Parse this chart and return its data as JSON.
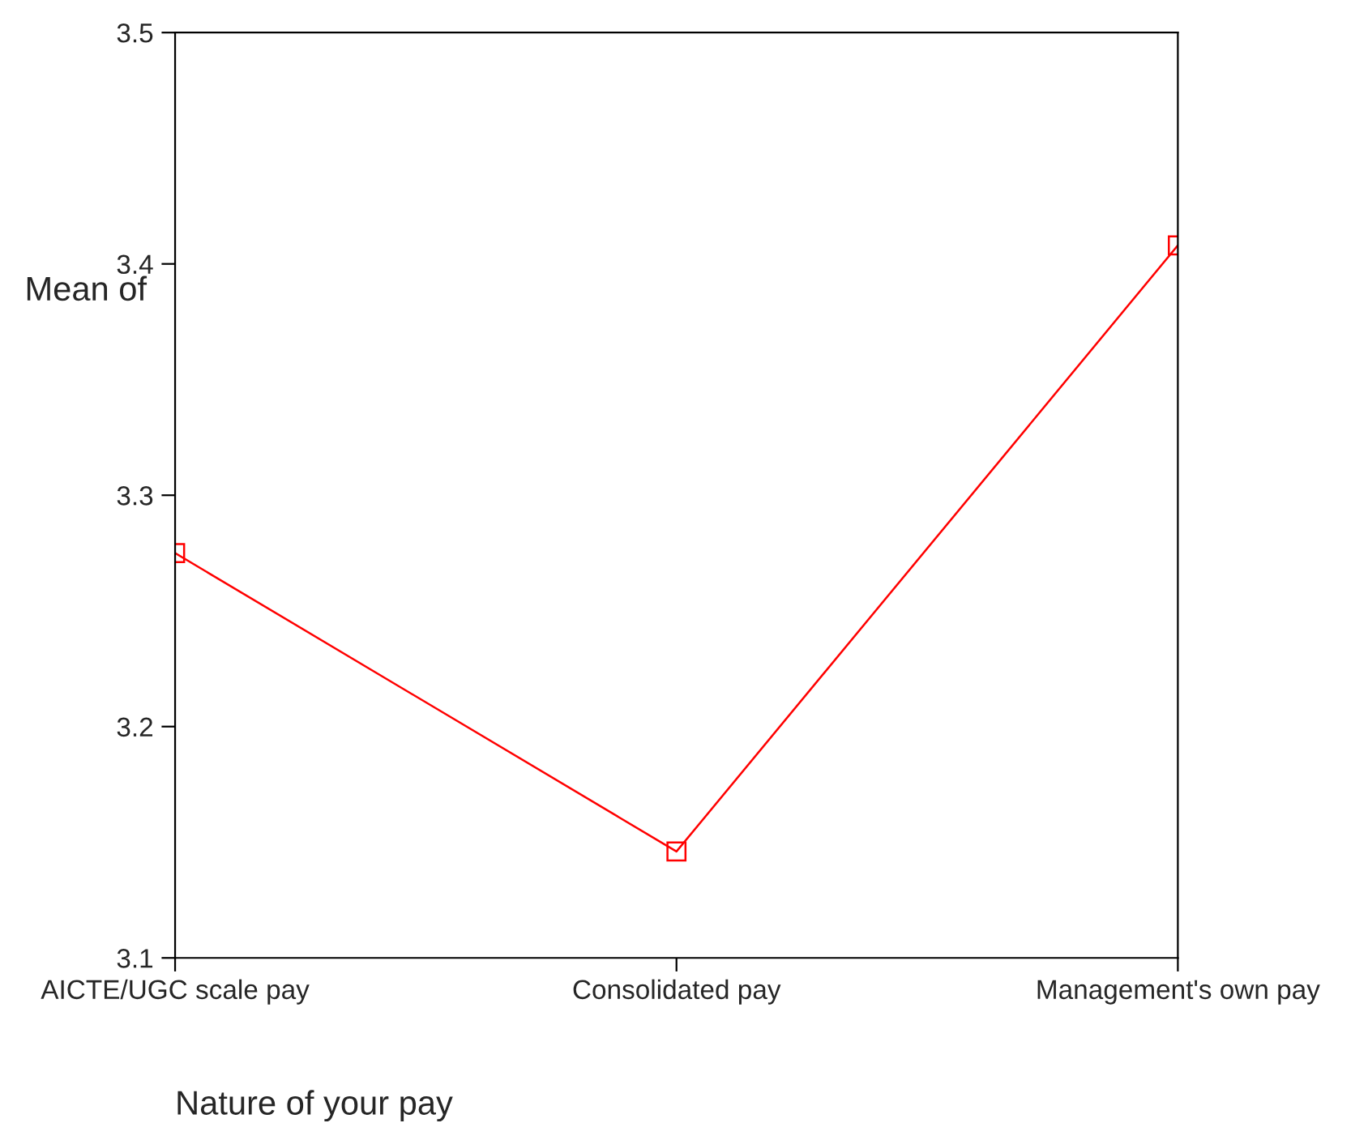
{
  "chart_data": {
    "type": "line",
    "xlabel": "Nature of your pay",
    "ylabel": "Mean of",
    "categories": [
      "AICTE/UGC scale pay",
      "Consolidated pay",
      "Management's own pay"
    ],
    "series": [
      {
        "color": "#ff0000",
        "values": [
          3.275,
          3.146,
          3.408
        ]
      }
    ],
    "ylim": [
      3.1,
      3.5
    ],
    "yticks": [
      3.1,
      3.2,
      3.3,
      3.4,
      3.5
    ],
    "grid": false,
    "marker": "square",
    "line_style": "solid"
  }
}
